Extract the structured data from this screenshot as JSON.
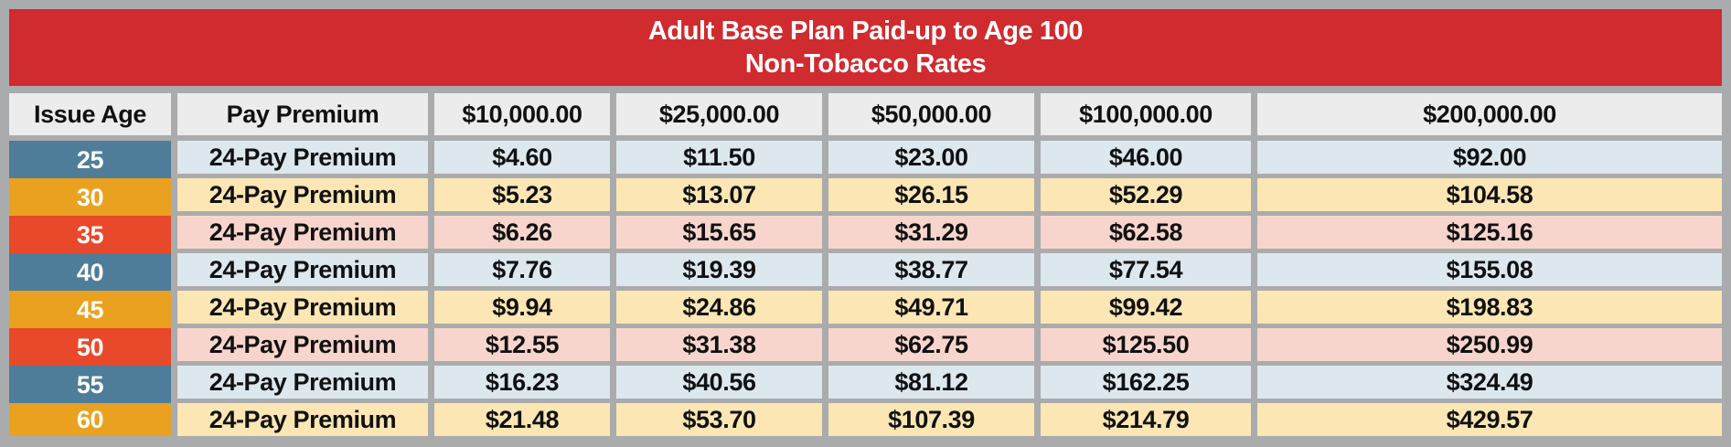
{
  "title": {
    "line1": "Adult Base Plan Paid-up to Age 100",
    "line2": "Non-Tobacco Rates"
  },
  "columns": [
    "Issue Age",
    "Pay Premium",
    "$10,000.00",
    "$25,000.00",
    "$50,000.00",
    "$100,000.00",
    "$200,000.00"
  ],
  "rows": [
    {
      "age": "25",
      "pay_label": "24-Pay Premium",
      "theme": "blue",
      "values": [
        "$4.60",
        "$11.50",
        "$23.00",
        "$46.00",
        "$92.00"
      ]
    },
    {
      "age": "30",
      "pay_label": "24-Pay Premium",
      "theme": "gold",
      "values": [
        "$5.23",
        "$13.07",
        "$26.15",
        "$52.29",
        "$104.58"
      ]
    },
    {
      "age": "35",
      "pay_label": "24-Pay Premium",
      "theme": "orange",
      "values": [
        "$6.26",
        "$15.65",
        "$31.29",
        "$62.58",
        "$125.16"
      ]
    },
    {
      "age": "40",
      "pay_label": "24-Pay Premium",
      "theme": "blue",
      "values": [
        "$7.76",
        "$19.39",
        "$38.77",
        "$77.54",
        "$155.08"
      ]
    },
    {
      "age": "45",
      "pay_label": "24-Pay Premium",
      "theme": "gold",
      "values": [
        "$9.94",
        "$24.86",
        "$49.71",
        "$99.42",
        "$198.83"
      ]
    },
    {
      "age": "50",
      "pay_label": "24-Pay Premium",
      "theme": "orange",
      "values": [
        "$12.55",
        "$31.38",
        "$62.75",
        "$125.50",
        "$250.99"
      ]
    },
    {
      "age": "55",
      "pay_label": "24-Pay Premium",
      "theme": "blue",
      "values": [
        "$16.23",
        "$40.56",
        "$81.12",
        "$162.25",
        "$324.49"
      ]
    },
    {
      "age": "60",
      "pay_label": "24-Pay Premium",
      "theme": "gold",
      "values": [
        "$21.48",
        "$53.70",
        "$107.39",
        "$214.79",
        "$429.57"
      ]
    }
  ],
  "colors": {
    "banner_red": "#d02b2f",
    "frame_grey": "#aaabac",
    "header_cell_bg": "#ececec",
    "age_blue": "#4e7d99",
    "age_gold": "#e9a11f",
    "age_orange_red": "#e8492a",
    "row_light_blue": "#dce8ee",
    "row_cream": "#fbe6b4",
    "row_pink": "#f8d5cc",
    "title_text": "#ffffff",
    "body_text": "#111111"
  },
  "chart_data": {
    "type": "table",
    "title": "Adult Base Plan Paid-up to Age 100 — Non-Tobacco Rates",
    "columns": [
      "Issue Age",
      "Pay Premium",
      "$10,000.00",
      "$25,000.00",
      "$50,000.00",
      "$100,000.00",
      "$200,000.00"
    ],
    "rows": [
      [
        "25",
        "24-Pay Premium",
        4.6,
        11.5,
        23.0,
        46.0,
        92.0
      ],
      [
        "30",
        "24-Pay Premium",
        5.23,
        13.07,
        26.15,
        52.29,
        104.58
      ],
      [
        "35",
        "24-Pay Premium",
        6.26,
        15.65,
        31.29,
        62.58,
        125.16
      ],
      [
        "40",
        "24-Pay Premium",
        7.76,
        19.39,
        38.77,
        77.54,
        155.08
      ],
      [
        "45",
        "24-Pay Premium",
        9.94,
        24.86,
        49.71,
        99.42,
        198.83
      ],
      [
        "50",
        "24-Pay Premium",
        12.55,
        31.38,
        62.75,
        125.5,
        250.99
      ],
      [
        "55",
        "24-Pay Premium",
        16.23,
        40.56,
        81.12,
        162.25,
        324.49
      ],
      [
        "60",
        "24-Pay Premium",
        21.48,
        53.7,
        107.39,
        214.79,
        429.57
      ]
    ]
  }
}
